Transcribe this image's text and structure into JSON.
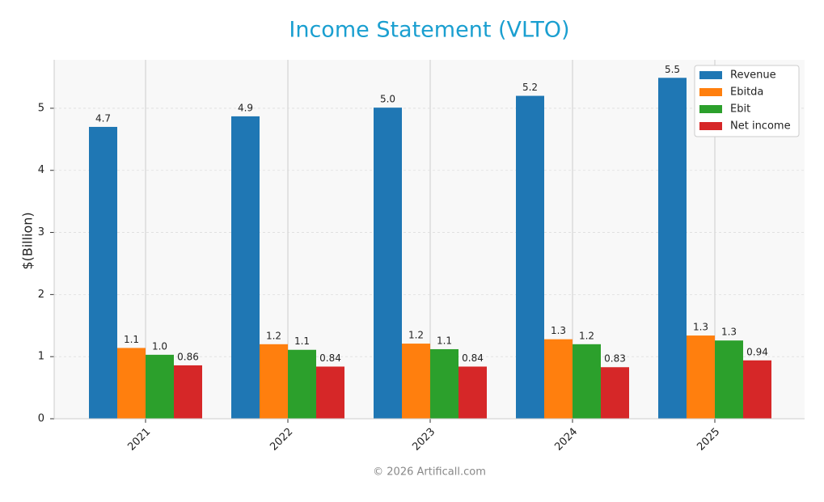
{
  "chart_data": {
    "type": "bar",
    "title": "Income Statement (VLTO)",
    "ylabel": "$(Billion)",
    "footer": "© 2026 Artificall.com",
    "categories": [
      "2021",
      "2022",
      "2023",
      "2024",
      "2025"
    ],
    "series": [
      {
        "name": "Revenue",
        "color": "#1f77b4",
        "values": [
          4.7,
          4.87,
          5.01,
          5.2,
          5.49
        ],
        "value_labels": [
          "4.7",
          "4.9",
          "5.0",
          "5.2",
          "5.5"
        ]
      },
      {
        "name": "Ebitda",
        "color": "#ff7f0e",
        "values": [
          1.14,
          1.2,
          1.21,
          1.28,
          1.34
        ],
        "value_labels": [
          "1.1",
          "1.2",
          "1.2",
          "1.3",
          "1.3"
        ]
      },
      {
        "name": "Ebit",
        "color": "#2ca02c",
        "values": [
          1.03,
          1.11,
          1.12,
          1.2,
          1.26
        ],
        "value_labels": [
          "1.0",
          "1.1",
          "1.1",
          "1.2",
          "1.3"
        ]
      },
      {
        "name": "Net income",
        "color": "#d62728",
        "values": [
          0.86,
          0.84,
          0.84,
          0.83,
          0.94
        ],
        "value_labels": [
          "0.86",
          "0.84",
          "0.84",
          "0.83",
          "0.94"
        ]
      }
    ],
    "ylim": [
      0,
      5.78
    ],
    "yticks": [
      0,
      1,
      2,
      3,
      4,
      5
    ],
    "grid": true,
    "legend": "upper right"
  }
}
